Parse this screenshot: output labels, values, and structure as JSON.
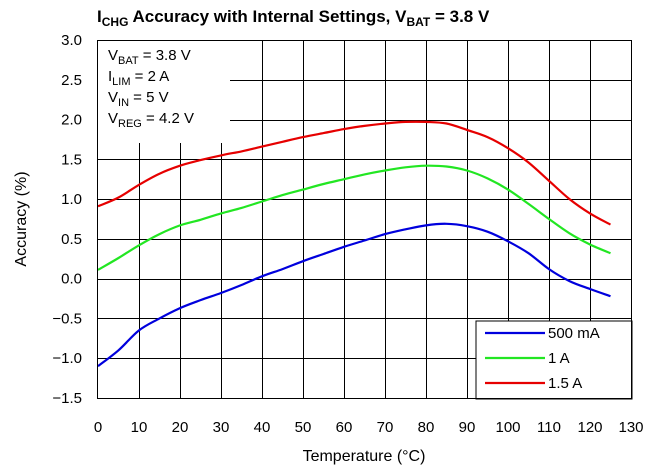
{
  "chart_data": {
    "type": "line",
    "title": {
      "main": "I",
      "main_sub": "CHG",
      "rest": " Accuracy with Internal Settings, V",
      "rest_sub": "BAT",
      "tail": " = 3.8 V"
    },
    "xlabel": "Temperature (°C)",
    "ylabel": "Accuracy (%)",
    "xlim": [
      0,
      130
    ],
    "ylim": [
      -1.5,
      3.0
    ],
    "xticks": [
      "0",
      "10",
      "20",
      "30",
      "40",
      "50",
      "60",
      "70",
      "80",
      "90",
      "100",
      "110",
      "120",
      "130"
    ],
    "yticks": [
      "3.0",
      "2.5",
      "2.0",
      "1.5",
      "1.0",
      "0.5",
      "0.0",
      "−0.5",
      "−1.0",
      "−1.5"
    ],
    "grid": true,
    "annotations": [
      {
        "sym": "V",
        "sub": "BAT",
        "val": " = 3.8 V"
      },
      {
        "sym": "I",
        "sub": "LIM",
        "val": " = 2 A"
      },
      {
        "sym": "V",
        "sub": "IN",
        "val": " = 5 V"
      },
      {
        "sym": "V",
        "sub": "REG",
        "val": " = 4.2 V"
      }
    ],
    "legend_position": "bottom-right",
    "series": [
      {
        "name": "500 mA",
        "color": "#0000dd",
        "x": [
          0,
          5,
          10,
          15,
          20,
          25,
          30,
          35,
          40,
          45,
          50,
          55,
          60,
          65,
          70,
          75,
          80,
          85,
          90,
          95,
          100,
          105,
          110,
          115,
          120,
          125
        ],
        "y": [
          -1.1,
          -0.9,
          -0.65,
          -0.5,
          -0.37,
          -0.27,
          -0.18,
          -0.08,
          0.03,
          0.12,
          0.22,
          0.31,
          0.4,
          0.48,
          0.56,
          0.62,
          0.67,
          0.69,
          0.66,
          0.59,
          0.47,
          0.32,
          0.12,
          -0.03,
          -0.13,
          -0.22
        ]
      },
      {
        "name": "1 A",
        "color": "#22e622",
        "x": [
          0,
          5,
          10,
          15,
          20,
          25,
          30,
          35,
          40,
          45,
          50,
          55,
          60,
          65,
          70,
          75,
          80,
          85,
          90,
          95,
          100,
          105,
          110,
          115,
          120,
          125
        ],
        "y": [
          0.11,
          0.26,
          0.42,
          0.56,
          0.67,
          0.74,
          0.82,
          0.89,
          0.97,
          1.05,
          1.12,
          1.19,
          1.25,
          1.31,
          1.36,
          1.4,
          1.42,
          1.41,
          1.36,
          1.26,
          1.12,
          0.94,
          0.75,
          0.57,
          0.43,
          0.32
        ]
      },
      {
        "name": "1.5 A",
        "color": "#e60000",
        "x": [
          0,
          5,
          10,
          15,
          20,
          25,
          30,
          35,
          40,
          45,
          50,
          55,
          60,
          65,
          70,
          75,
          80,
          85,
          90,
          95,
          100,
          105,
          110,
          115,
          120,
          125
        ],
        "y": [
          0.91,
          1.02,
          1.18,
          1.32,
          1.42,
          1.49,
          1.55,
          1.6,
          1.66,
          1.72,
          1.78,
          1.83,
          1.88,
          1.92,
          1.95,
          1.97,
          1.97,
          1.95,
          1.87,
          1.78,
          1.64,
          1.46,
          1.23,
          1.0,
          0.82,
          0.68
        ]
      }
    ]
  }
}
